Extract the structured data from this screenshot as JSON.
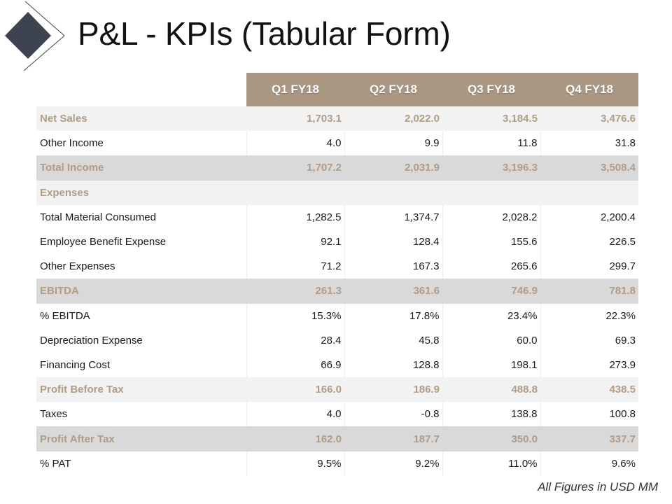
{
  "title": "P&L - KPIs (Tabular Form)",
  "columns": [
    "Q1 FY18",
    "Q2 FY18",
    "Q3 FY18",
    "Q4 FY18"
  ],
  "rows": [
    {
      "label": "Net Sales",
      "values": [
        "1,703.1",
        "2,022.0",
        "3,184.5",
        "3,476.6"
      ]
    },
    {
      "label": "Other Income",
      "values": [
        "4.0",
        "9.9",
        "11.8",
        "31.8"
      ]
    },
    {
      "label": "Total Income",
      "values": [
        "1,707.2",
        "2,031.9",
        "3,196.3",
        "3,508.4"
      ]
    },
    {
      "label": "Expenses",
      "values": [
        "",
        "",
        "",
        ""
      ]
    },
    {
      "label": "Total Material Consumed",
      "values": [
        "1,282.5",
        "1,374.7",
        "2,028.2",
        "2,200.4"
      ]
    },
    {
      "label": "Employee Benefit Expense",
      "values": [
        "92.1",
        "128.4",
        "155.6",
        "226.5"
      ]
    },
    {
      "label": "Other Expenses",
      "values": [
        "71.2",
        "167.3",
        "265.6",
        "299.7"
      ]
    },
    {
      "label": "EBITDA",
      "values": [
        "261.3",
        "361.6",
        "746.9",
        "781.8"
      ]
    },
    {
      "label": "% EBITDA",
      "values": [
        "15.3%",
        "17.8%",
        "23.4%",
        "22.3%"
      ]
    },
    {
      "label": "Depreciation Expense",
      "values": [
        "28.4",
        "45.8",
        "60.0",
        "69.3"
      ]
    },
    {
      "label": "Financing Cost",
      "values": [
        "66.9",
        "128.8",
        "198.1",
        "273.9"
      ]
    },
    {
      "label": "Profit Before Tax",
      "values": [
        "166.0",
        "186.9",
        "488.8",
        "438.5"
      ]
    },
    {
      "label": "Taxes",
      "values": [
        "4.0",
        "-0.8",
        "138.8",
        "100.8"
      ]
    },
    {
      "label": "Profit After Tax",
      "values": [
        "162.0",
        "187.7",
        "350.0",
        "337.7"
      ]
    },
    {
      "label": "% PAT",
      "values": [
        "9.5%",
        "9.2%",
        "11.0%",
        "9.6%"
      ]
    }
  ],
  "footnote": "All Figures in USD MM",
  "colors": {
    "header_bg": "#a99781",
    "highlight_text": "#b09c84",
    "row_light": "#f2f2f2",
    "row_dark": "#d9d9d9",
    "diamond": "#3d4450"
  },
  "icons": {
    "logo": "diamond-logo-icon"
  }
}
